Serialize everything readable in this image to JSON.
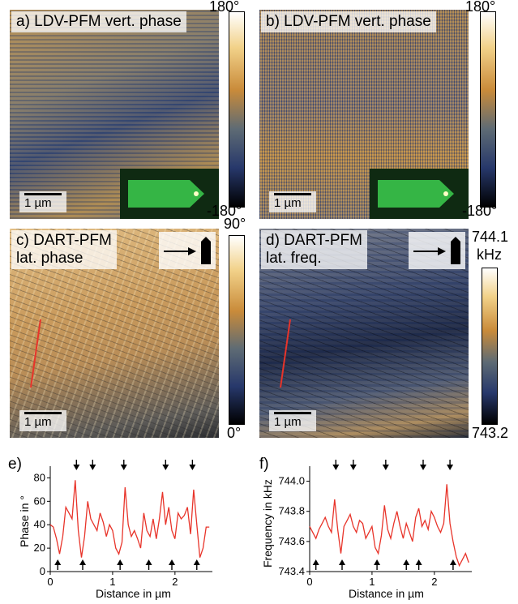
{
  "panels": {
    "a": {
      "label_line1": "a) LDV-PFM vert. phase",
      "scale": "1 µm",
      "cbar_top": "180°",
      "cbar_bottom": "-180°"
    },
    "b": {
      "label_line1": "b) LDV-PFM vert. phase",
      "scale": "1 µm",
      "cbar_top": "180°",
      "cbar_bottom": "-180°"
    },
    "c": {
      "label_line1": "c) DART-PFM",
      "label_line2": "lat. phase",
      "scale": "1 µm",
      "cbar_top": "90°",
      "cbar_bottom": "0°"
    },
    "d": {
      "label_line1": "d) DART-PFM",
      "label_line2": "lat. freq.",
      "scale": "1 µm",
      "cbar_top": "744.1",
      "cbar_unit": "kHz",
      "cbar_bottom": "743.2"
    }
  },
  "colors": {
    "trace": "#e8342a",
    "line": "#e8342a"
  },
  "chart_data": [
    {
      "type": "line",
      "panel_label": "e)",
      "xlabel": "Distance in µm",
      "ylabel": "Phase in °",
      "xlim": [
        0,
        2.6
      ],
      "ylim": [
        0,
        90
      ],
      "xticks": [
        0,
        1,
        2
      ],
      "yticks": [
        0,
        20,
        40,
        60,
        80
      ],
      "x": [
        0.0,
        0.05,
        0.1,
        0.15,
        0.2,
        0.25,
        0.3,
        0.35,
        0.4,
        0.45,
        0.5,
        0.55,
        0.6,
        0.65,
        0.7,
        0.75,
        0.8,
        0.85,
        0.9,
        0.95,
        1.0,
        1.05,
        1.1,
        1.15,
        1.2,
        1.25,
        1.3,
        1.35,
        1.4,
        1.45,
        1.5,
        1.55,
        1.6,
        1.65,
        1.7,
        1.75,
        1.8,
        1.85,
        1.9,
        1.95,
        2.0,
        2.05,
        2.1,
        2.15,
        2.2,
        2.25,
        2.3,
        2.35,
        2.4,
        2.45,
        2.5,
        2.55
      ],
      "y": [
        40,
        38,
        28,
        15,
        30,
        55,
        50,
        45,
        78,
        35,
        12,
        30,
        60,
        45,
        40,
        35,
        50,
        42,
        30,
        40,
        35,
        20,
        15,
        25,
        72,
        40,
        30,
        35,
        28,
        20,
        50,
        35,
        30,
        45,
        28,
        45,
        68,
        40,
        55,
        35,
        28,
        50,
        45,
        48,
        55,
        32,
        70,
        40,
        12,
        20,
        38,
        38
      ],
      "arrows_down_x": [
        0.42,
        0.68,
        1.18,
        1.85,
        2.28
      ],
      "arrows_up_x": [
        0.12,
        0.52,
        1.12,
        1.58,
        1.95,
        2.35
      ]
    },
    {
      "type": "line",
      "panel_label": "f)",
      "xlabel": "Distance in µm",
      "ylabel": "Frequency in kHz",
      "xlim": [
        0,
        2.6
      ],
      "ylim": [
        743.4,
        744.1
      ],
      "xticks": [
        0,
        1,
        2
      ],
      "yticks": [
        743.4,
        743.6,
        743.8,
        744.0
      ],
      "x": [
        0.0,
        0.05,
        0.1,
        0.15,
        0.2,
        0.25,
        0.3,
        0.35,
        0.4,
        0.45,
        0.5,
        0.55,
        0.6,
        0.65,
        0.7,
        0.75,
        0.8,
        0.85,
        0.9,
        0.95,
        1.0,
        1.05,
        1.1,
        1.15,
        1.2,
        1.25,
        1.3,
        1.35,
        1.4,
        1.45,
        1.5,
        1.55,
        1.6,
        1.65,
        1.7,
        1.75,
        1.8,
        1.85,
        1.9,
        1.95,
        2.0,
        2.05,
        2.1,
        2.15,
        2.2,
        2.25,
        2.3,
        2.35,
        2.4,
        2.45,
        2.5,
        2.55
      ],
      "y": [
        743.7,
        743.66,
        743.62,
        743.68,
        743.72,
        743.76,
        743.7,
        743.66,
        743.88,
        743.68,
        743.52,
        743.7,
        743.74,
        743.78,
        743.7,
        743.66,
        743.74,
        743.72,
        743.62,
        743.66,
        743.7,
        743.56,
        743.52,
        743.64,
        743.84,
        743.68,
        743.62,
        743.72,
        743.8,
        743.7,
        743.62,
        743.72,
        743.66,
        743.6,
        743.76,
        743.82,
        743.7,
        743.74,
        743.68,
        743.8,
        743.76,
        743.7,
        743.66,
        743.72,
        743.98,
        743.72,
        743.6,
        743.5,
        743.44,
        743.48,
        743.52,
        743.46
      ],
      "arrows_down_x": [
        0.42,
        0.7,
        1.22,
        1.82,
        2.25
      ],
      "arrows_up_x": [
        0.1,
        0.52,
        1.08,
        1.55,
        1.75,
        2.3
      ]
    }
  ]
}
